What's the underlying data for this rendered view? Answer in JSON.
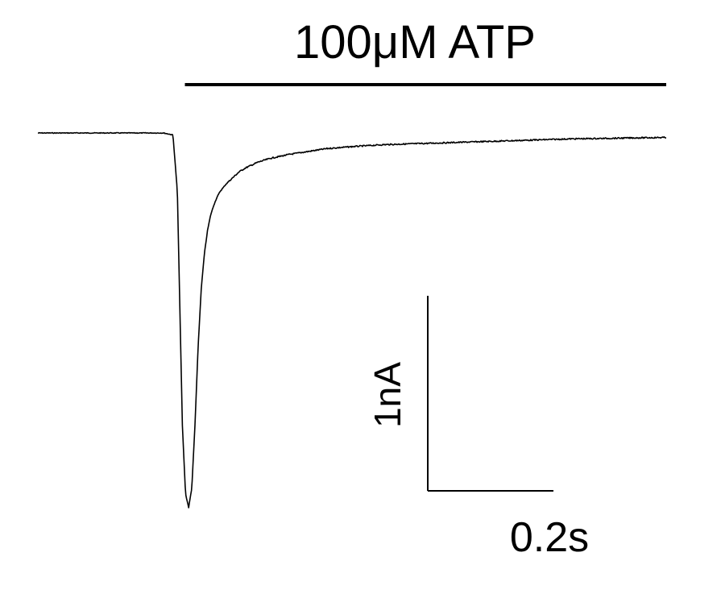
{
  "chart_data": {
    "type": "line",
    "title": "",
    "xlabel": "",
    "ylabel": "",
    "grid": false,
    "legend": "none",
    "trace_color": "#000000",
    "application_bar": {
      "label": "100μM ATP",
      "start_s": 0.234,
      "end_s": 1.0
    },
    "scale_bars": {
      "time_label": "0.2s",
      "time_length_s": 0.2,
      "current_label": "1nA",
      "current_length_nA": 1.0
    },
    "xlim_s": [
      0.0,
      1.0
    ],
    "series": [
      {
        "name": "",
        "x_s": [
          0.0,
          0.05,
          0.1,
          0.15,
          0.2,
          0.215,
          0.222,
          0.226,
          0.23,
          0.235,
          0.24,
          0.245,
          0.25,
          0.255,
          0.26,
          0.265,
          0.27,
          0.275,
          0.28,
          0.285,
          0.29,
          0.3,
          0.31,
          0.32,
          0.33,
          0.35,
          0.37,
          0.4,
          0.43,
          0.46,
          0.5,
          0.55,
          0.6,
          0.65,
          0.7,
          0.75,
          0.8,
          0.85,
          0.9,
          0.95,
          1.0
        ],
        "current_nA": [
          0.0,
          0.0,
          0.0,
          0.0,
          0.0,
          -0.01,
          -0.3,
          -0.9,
          -1.5,
          -1.85,
          -1.92,
          -1.82,
          -1.5,
          -1.1,
          -0.8,
          -0.62,
          -0.5,
          -0.42,
          -0.37,
          -0.33,
          -0.3,
          -0.26,
          -0.23,
          -0.2,
          -0.18,
          -0.15,
          -0.13,
          -0.11,
          -0.095,
          -0.08,
          -0.07,
          -0.06,
          -0.055,
          -0.05,
          -0.045,
          -0.04,
          -0.035,
          -0.03,
          -0.028,
          -0.025,
          -0.023
        ]
      }
    ]
  }
}
